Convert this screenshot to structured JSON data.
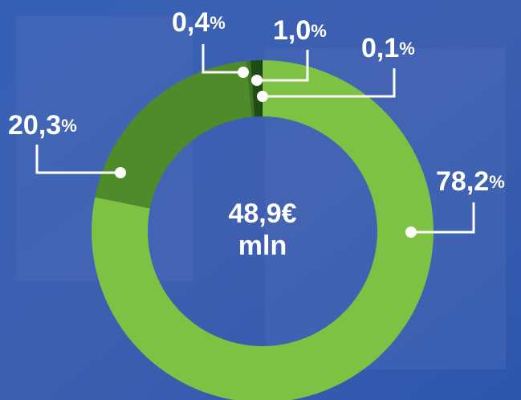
{
  "chart_data": {
    "type": "donut",
    "center_text": [
      "48,9€",
      "mln"
    ],
    "values": [
      78.2,
      20.3,
      0.4,
      1.0,
      0.1
    ],
    "value_labels": [
      "78,2%",
      "20,3%",
      "0,4%",
      "1,0%",
      "0,1%"
    ],
    "colors": [
      "#7dc242",
      "#4f8a2b",
      "#3c7424",
      "#1f4c12",
      "#0c2b07"
    ]
  }
}
